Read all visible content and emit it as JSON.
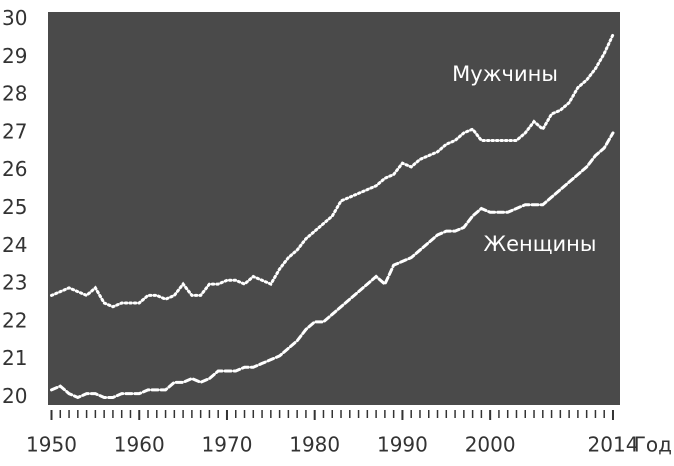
{
  "chart_data": {
    "type": "line",
    "x_label": "Год",
    "x": [
      1950,
      1951,
      1952,
      1953,
      1954,
      1955,
      1956,
      1957,
      1958,
      1959,
      1960,
      1961,
      1962,
      1963,
      1964,
      1965,
      1966,
      1967,
      1968,
      1969,
      1970,
      1971,
      1972,
      1973,
      1974,
      1975,
      1976,
      1977,
      1978,
      1979,
      1980,
      1981,
      1982,
      1983,
      1984,
      1985,
      1986,
      1987,
      1988,
      1989,
      1990,
      1991,
      1992,
      1993,
      1994,
      1995,
      1996,
      1997,
      1998,
      1999,
      2000,
      2001,
      2002,
      2003,
      2004,
      2005,
      2006,
      2007,
      2008,
      2009,
      2010,
      2011,
      2012,
      2013,
      2014
    ],
    "series": [
      {
        "name": "Мужчины",
        "color": "#ffffff",
        "dash": "dotted",
        "values": [
          22.7,
          22.8,
          22.9,
          22.8,
          22.7,
          22.9,
          22.5,
          22.4,
          22.5,
          22.5,
          22.5,
          22.7,
          22.7,
          22.6,
          22.7,
          23.0,
          22.7,
          22.7,
          23.0,
          23.0,
          23.1,
          23.1,
          23.0,
          23.2,
          23.1,
          23.0,
          23.4,
          23.7,
          23.9,
          24.2,
          24.4,
          24.6,
          24.8,
          25.2,
          25.3,
          25.4,
          25.5,
          25.6,
          25.8,
          25.9,
          26.2,
          26.1,
          26.3,
          26.4,
          26.5,
          26.7,
          26.8,
          27.0,
          27.1,
          26.8,
          26.8,
          26.8,
          26.8,
          26.8,
          27.0,
          27.3,
          27.1,
          27.5,
          27.6,
          27.8,
          28.2,
          28.4,
          28.7,
          29.1,
          29.6
        ]
      },
      {
        "name": "Женщины",
        "color": "#ffffff",
        "dash": "dashed",
        "values": [
          20.2,
          20.3,
          20.1,
          20.0,
          20.1,
          20.1,
          20.0,
          20.0,
          20.1,
          20.1,
          20.1,
          20.2,
          20.2,
          20.2,
          20.4,
          20.4,
          20.5,
          20.4,
          20.5,
          20.7,
          20.7,
          20.7,
          20.8,
          20.8,
          20.9,
          21.0,
          21.1,
          21.3,
          21.5,
          21.8,
          22.0,
          22.0,
          22.2,
          22.4,
          22.6,
          22.8,
          23.0,
          23.2,
          23.0,
          23.5,
          23.6,
          23.7,
          23.9,
          24.1,
          24.3,
          24.4,
          24.4,
          24.5,
          24.8,
          25.0,
          24.9,
          24.9,
          24.9,
          25.0,
          25.1,
          25.1,
          25.1,
          25.3,
          25.5,
          25.7,
          25.9,
          26.1,
          26.4,
          26.6,
          27.0
        ]
      }
    ],
    "xlim": [
      1949.6,
      2014.8
    ],
    "xticks": [
      1950,
      1960,
      1970,
      1980,
      1990,
      2000,
      2014
    ],
    "x_minor_step": 1,
    "ylim": [
      19.8,
      30.2
    ],
    "yticks": [
      20,
      21,
      22,
      23,
      24,
      25,
      26,
      27,
      28,
      29,
      30
    ],
    "background": "#4a4a4a",
    "grid": false
  }
}
